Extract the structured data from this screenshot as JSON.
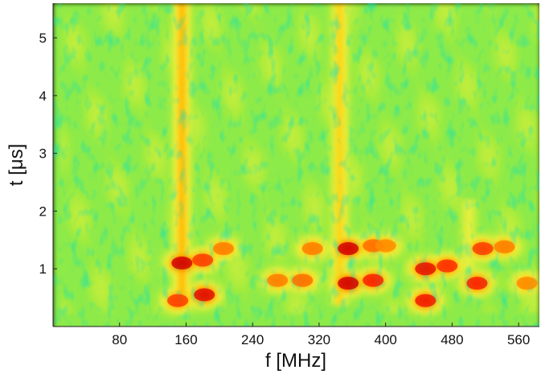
{
  "chart_data": {
    "type": "heatmap",
    "title": "",
    "xlabel": "f [MHz]",
    "ylabel": "t [μs]",
    "xlim": [
      0,
      585
    ],
    "ylim": [
      0,
      5.6
    ],
    "x_ticks": [
      80,
      160,
      240,
      320,
      400,
      480,
      560
    ],
    "y_ticks": [
      1,
      2,
      3,
      4,
      5
    ],
    "colormap": [
      "#0000b4",
      "#00a0ff",
      "#00e6e6",
      "#46e678",
      "#a0eb3c",
      "#f0f03c",
      "#ffc800",
      "#ff8200",
      "#ff2800",
      "#c80000"
    ],
    "background_level": 0.42,
    "ridges": [
      {
        "f": 155,
        "t_from": 0.4,
        "t_to": 5.6,
        "level": 0.7
      },
      {
        "f": 345,
        "t_from": 0.4,
        "t_to": 5.6,
        "level": 0.64
      },
      {
        "f": 500,
        "t_from": 1.0,
        "t_to": 2.2,
        "level": 0.55
      }
    ],
    "hot_spots": [
      {
        "f": 155,
        "t": 1.1,
        "level": 0.98
      },
      {
        "f": 180,
        "t": 1.15,
        "level": 0.86
      },
      {
        "f": 205,
        "t": 1.35,
        "level": 0.78
      },
      {
        "f": 150,
        "t": 0.45,
        "level": 0.86
      },
      {
        "f": 182,
        "t": 0.55,
        "level": 0.95
      },
      {
        "f": 270,
        "t": 0.8,
        "level": 0.78
      },
      {
        "f": 300,
        "t": 0.8,
        "level": 0.8
      },
      {
        "f": 312,
        "t": 1.35,
        "level": 0.78
      },
      {
        "f": 355,
        "t": 1.35,
        "level": 0.98
      },
      {
        "f": 355,
        "t": 0.75,
        "level": 0.98
      },
      {
        "f": 385,
        "t": 0.8,
        "level": 0.9
      },
      {
        "f": 385,
        "t": 1.4,
        "level": 0.8
      },
      {
        "f": 400,
        "t": 1.4,
        "level": 0.76
      },
      {
        "f": 448,
        "t": 1.0,
        "level": 0.94
      },
      {
        "f": 474,
        "t": 1.05,
        "level": 0.88
      },
      {
        "f": 448,
        "t": 0.45,
        "level": 0.92
      },
      {
        "f": 510,
        "t": 0.75,
        "level": 0.9
      },
      {
        "f": 517,
        "t": 1.35,
        "level": 0.86
      },
      {
        "f": 543,
        "t": 1.38,
        "level": 0.78
      },
      {
        "f": 570,
        "t": 0.75,
        "level": 0.76
      }
    ],
    "grid": false,
    "legend": "none"
  }
}
